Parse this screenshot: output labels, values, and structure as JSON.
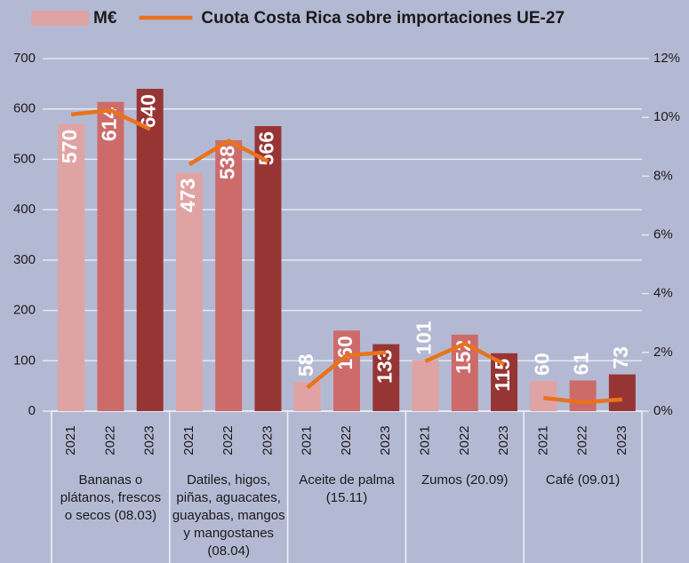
{
  "chart_data": {
    "type": "bar",
    "series": [
      {
        "name": "M€",
        "type": "bar",
        "axis": "y",
        "color": "#e0a3a3",
        "colors": [
          "#e0a3a3",
          "#cd6b6b",
          "#973535"
        ],
        "values": [
          570,
          614,
          640,
          473,
          538,
          566,
          58,
          160,
          133,
          101,
          152,
          115,
          60,
          61,
          73
        ]
      },
      {
        "name": "Cuota Costa Rica sobre importaciones UE-27",
        "type": "line",
        "axis": "y2",
        "color": "#e8731c",
        "values": [
          10.1,
          10.24,
          9.6,
          8.4,
          9.2,
          8.5,
          0.8,
          1.9,
          2.0,
          1.7,
          2.3,
          1.6,
          0.45,
          0.3,
          0.4
        ]
      }
    ],
    "categories": [
      "2021",
      "2022",
      "2023",
      "2021",
      "2022",
      "2023",
      "2021",
      "2022",
      "2023",
      "2021",
      "2022",
      "2023",
      "2021",
      "2022",
      "2023"
    ],
    "groups": [
      {
        "labels": [
          "Bananas o",
          "plátanos, frescos",
          "o secos (08.03)"
        ]
      },
      {
        "labels": [
          "Datiles, higos,",
          "piñas, aguacates,",
          "guayabas, mangos",
          "y mangostanes",
          "(08.04)"
        ]
      },
      {
        "labels": [
          "Aceite de palma",
          "(15.11)"
        ]
      },
      {
        "labels": [
          "Zumos (20.09)"
        ]
      },
      {
        "labels": [
          "Café (09.01)"
        ]
      }
    ],
    "ylim": [
      0,
      700
    ],
    "yticks": [
      0,
      100,
      200,
      300,
      400,
      500,
      600,
      700
    ],
    "y2lim": [
      0,
      12
    ],
    "y2ticks": [
      {
        "value": 0,
        "label": "0%"
      },
      {
        "value": 2,
        "label": "2%"
      },
      {
        "value": 4,
        "label": "4%"
      },
      {
        "value": 6,
        "label": "6%"
      },
      {
        "value": 8,
        "label": "8%"
      },
      {
        "value": 10,
        "label": "10%"
      },
      {
        "value": 12,
        "label": "12%"
      }
    ],
    "grid": true
  }
}
